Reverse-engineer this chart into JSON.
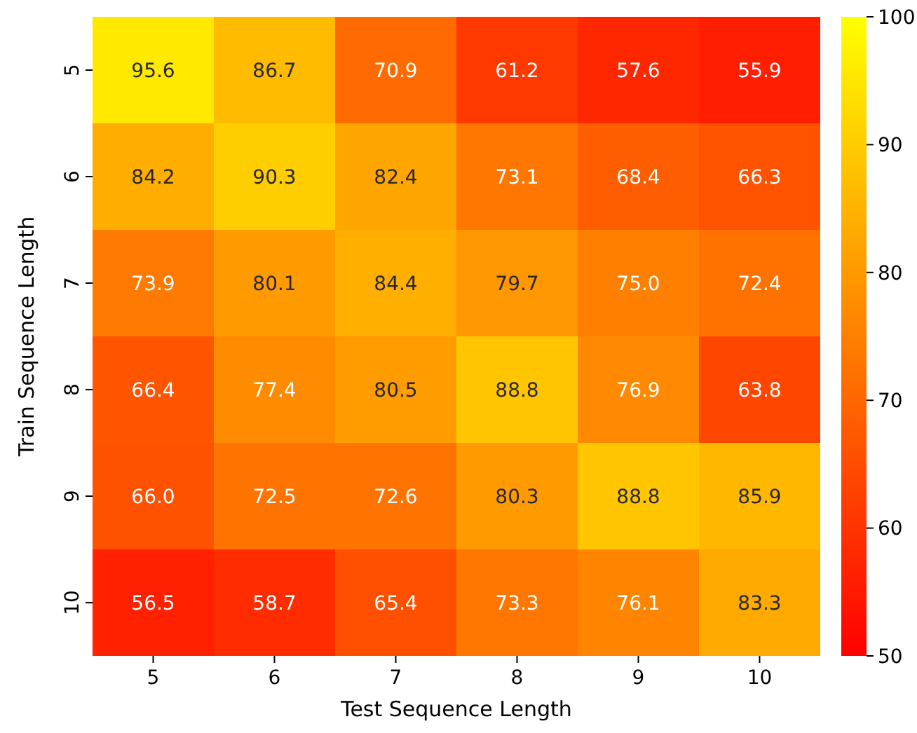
{
  "chart_data": {
    "type": "heatmap",
    "xlabel": "Test Sequence Length",
    "ylabel": "Train Sequence Length",
    "categories": [
      "5",
      "6",
      "7",
      "8",
      "9",
      "10"
    ],
    "y_categories": [
      "5",
      "6",
      "7",
      "8",
      "9",
      "10"
    ],
    "cells": [
      [
        95.6,
        86.7,
        70.9,
        61.2,
        57.6,
        55.9
      ],
      [
        84.2,
        90.3,
        82.4,
        73.1,
        68.4,
        66.3
      ],
      [
        73.9,
        80.1,
        84.4,
        79.7,
        75.0,
        72.4
      ],
      [
        66.4,
        77.4,
        80.5,
        88.8,
        76.9,
        63.8
      ],
      [
        66.0,
        72.5,
        72.6,
        80.3,
        88.8,
        85.9
      ],
      [
        56.5,
        58.7,
        65.4,
        73.3,
        76.1,
        83.3
      ]
    ],
    "cell_labels": [
      [
        "95.6",
        "86.7",
        "70.9",
        "61.2",
        "57.6",
        "55.9"
      ],
      [
        "84.2",
        "90.3",
        "82.4",
        "73.1",
        "68.4",
        "66.3"
      ],
      [
        "73.9",
        "80.1",
        "84.4",
        "79.7",
        "75.0",
        "72.4"
      ],
      [
        "66.4",
        "77.4",
        "80.5",
        "88.8",
        "76.9",
        "63.8"
      ],
      [
        "66.0",
        "72.5",
        "72.6",
        "80.3",
        "88.8",
        "85.9"
      ],
      [
        "56.5",
        "58.7",
        "65.4",
        "73.3",
        "76.1",
        "83.3"
      ]
    ],
    "clim": [
      50,
      100
    ],
    "cticks": [
      50,
      60,
      70,
      80,
      90,
      100
    ]
  }
}
